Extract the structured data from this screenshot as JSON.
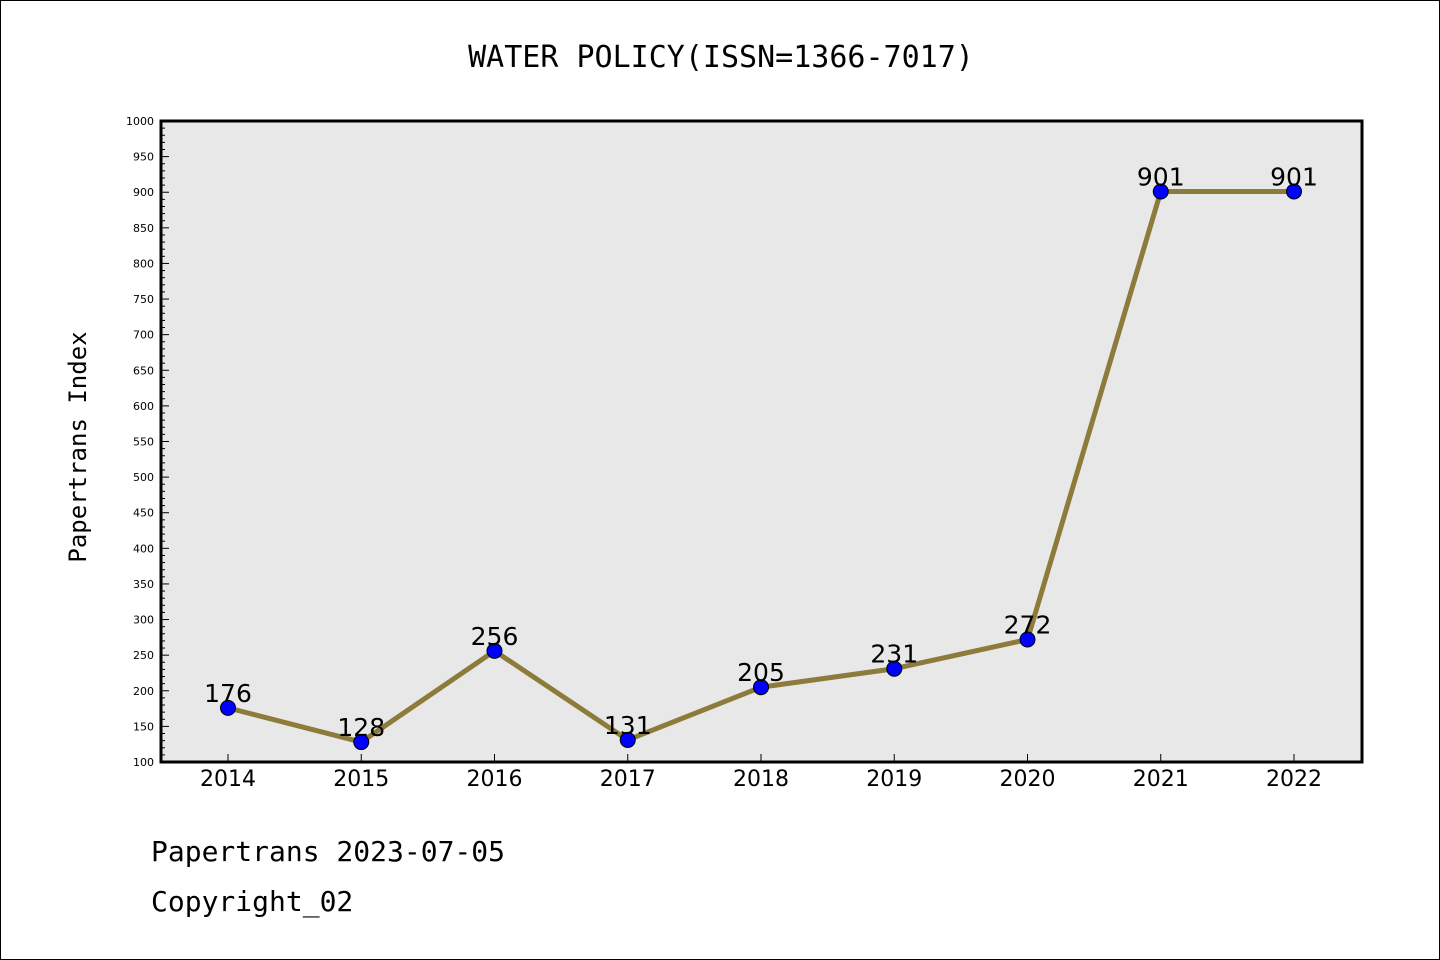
{
  "chart_data": {
    "type": "line",
    "title": "WATER POLICY(ISSN=1366-7017)",
    "ylabel": "Papertrans Index",
    "xlabel": "",
    "categories": [
      "2014",
      "2015",
      "2016",
      "2017",
      "2018",
      "2019",
      "2020",
      "2021",
      "2022"
    ],
    "values": [
      176,
      128,
      256,
      131,
      205,
      231,
      272,
      901,
      901
    ],
    "data_labels": [
      "176",
      "128",
      "256",
      "131",
      "205",
      "231",
      "272",
      "901",
      "901"
    ],
    "ylim": [
      100,
      1000
    ],
    "yticks": [
      "100",
      "150",
      "200",
      "250",
      "300",
      "350",
      "400",
      "450",
      "500",
      "550",
      "600",
      "650",
      "700",
      "750",
      "800",
      "850",
      "900",
      "950",
      "1000"
    ],
    "grid": false,
    "line_color": "#8c7b3a",
    "marker_color": "#0000ff",
    "plot_background": "#e8e8e8"
  },
  "footer": {
    "line1": "Papertrans 2023-07-05",
    "line2": "Copyright_02"
  }
}
